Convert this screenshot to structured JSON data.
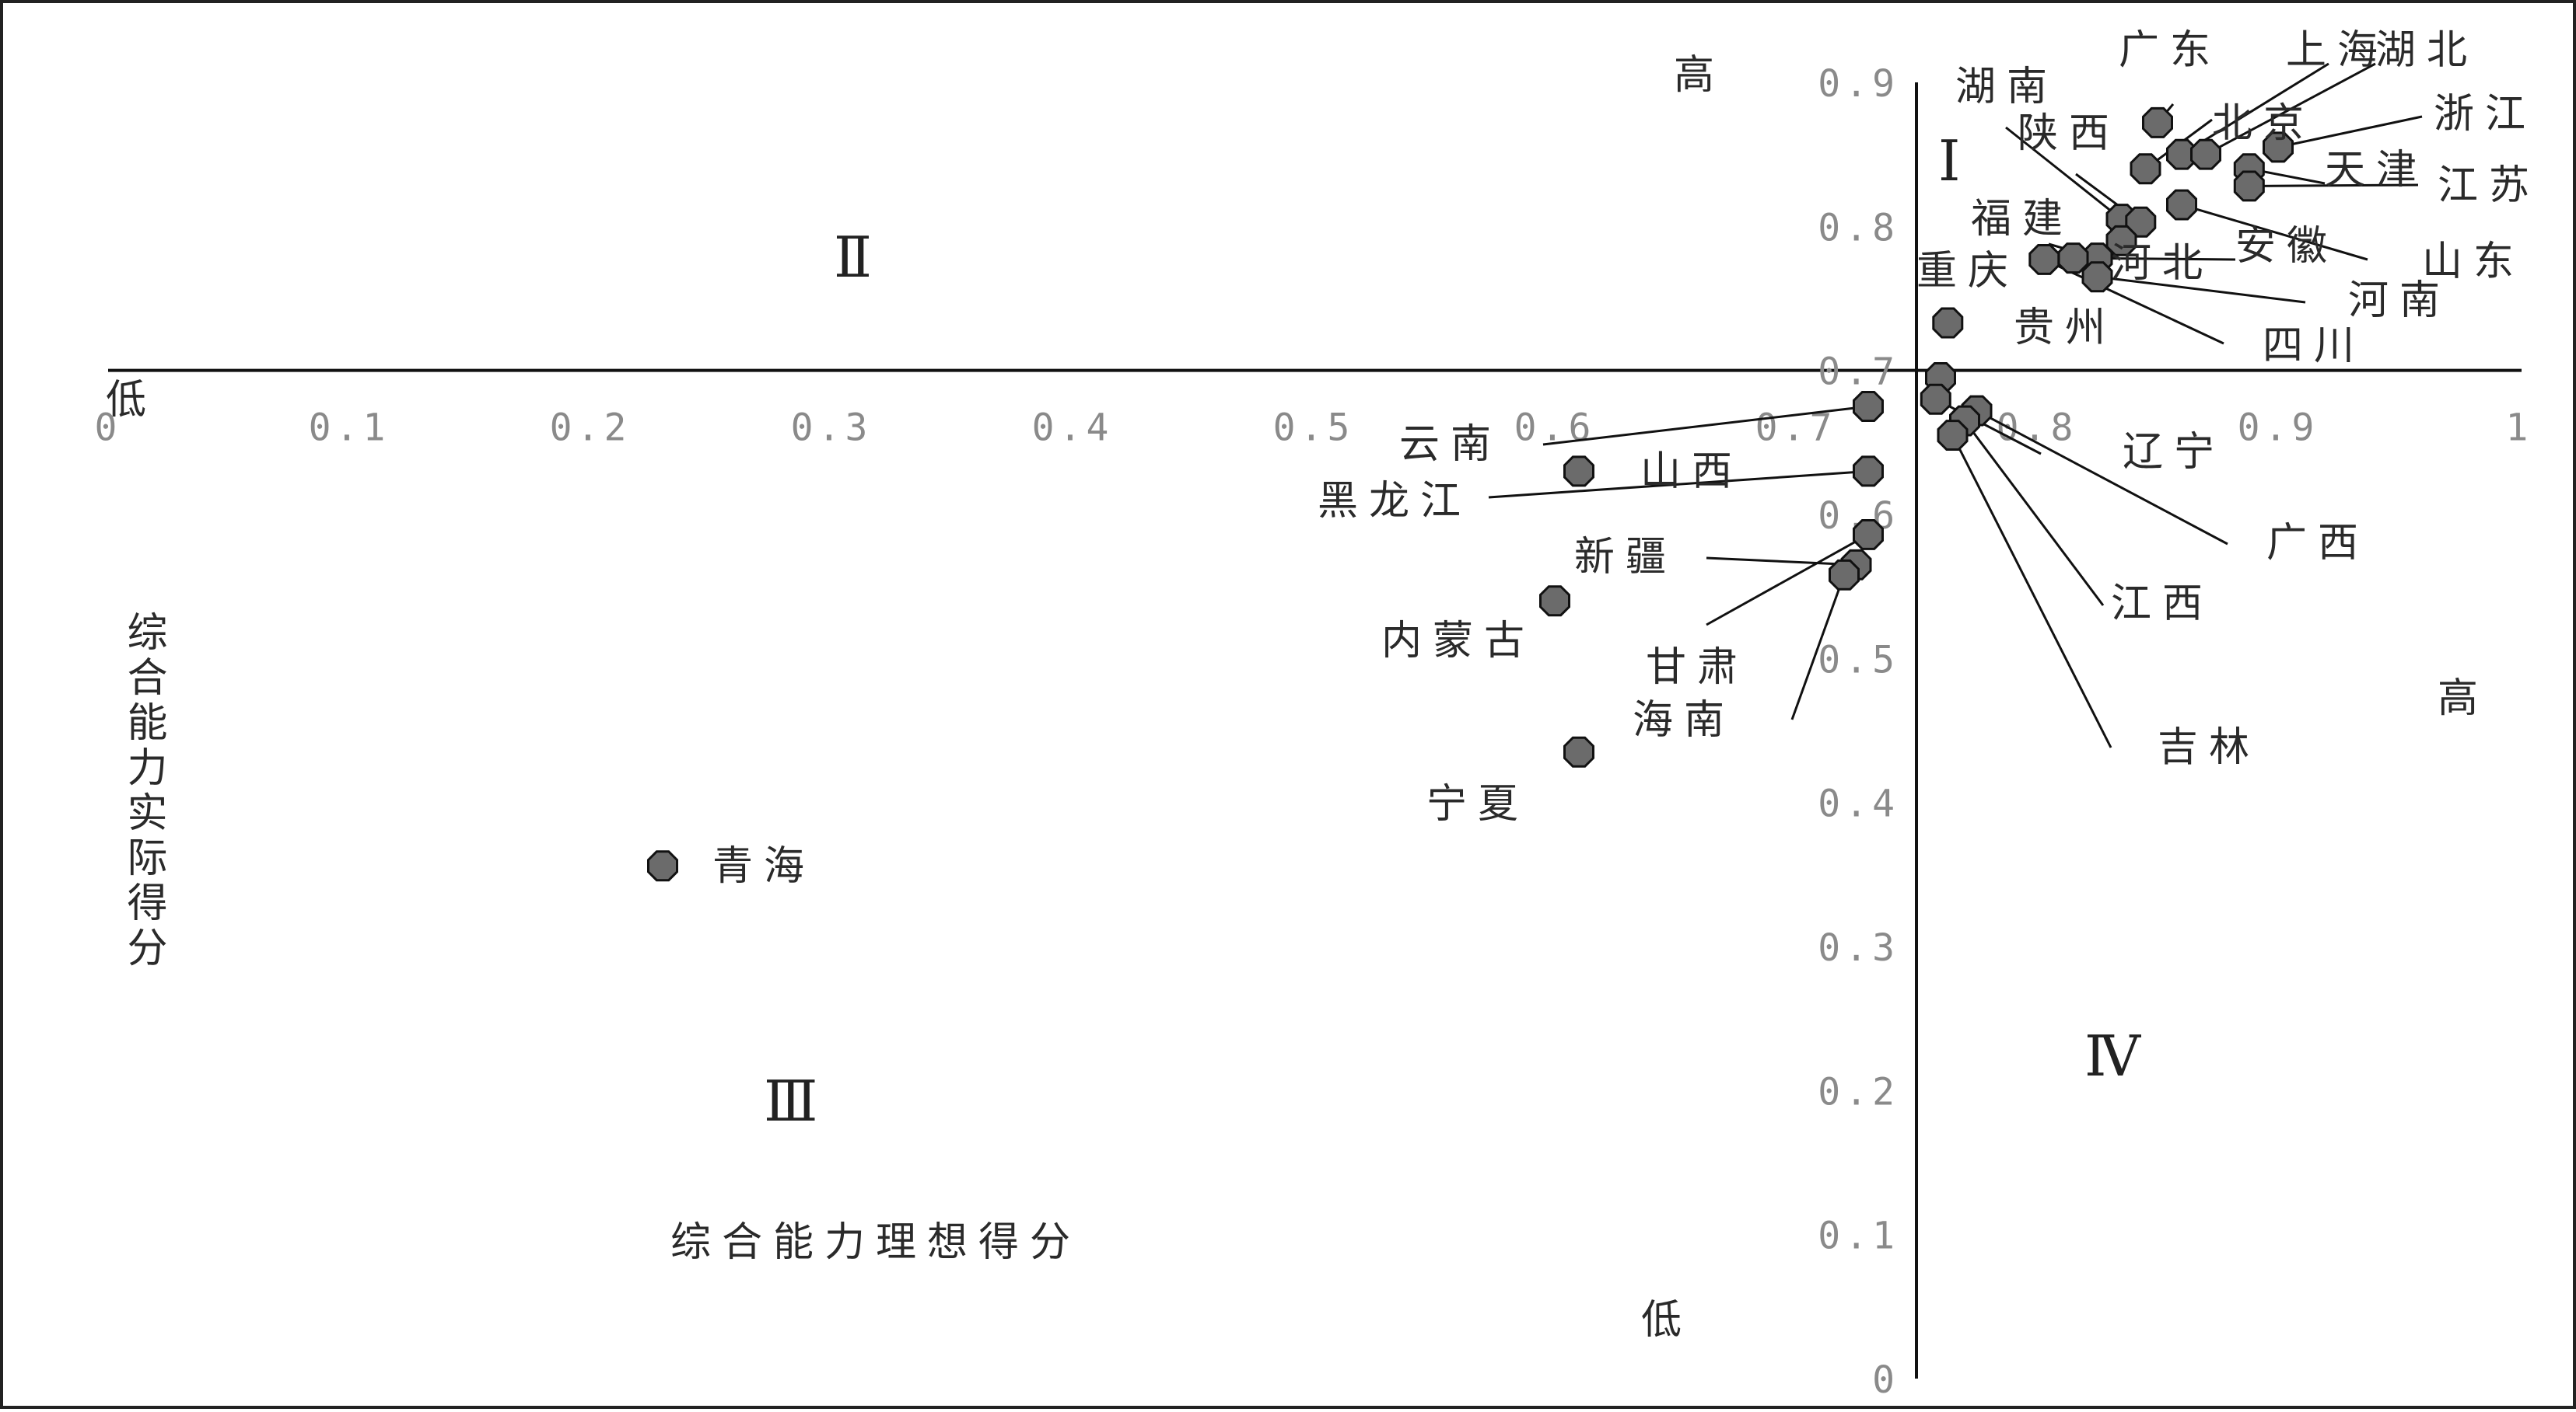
{
  "chart_data": {
    "type": "scatter",
    "title": "",
    "xlabel": "综合能力理想得分",
    "ylabel": "综合能力实际得分",
    "xlim": [
      0,
      1
    ],
    "ylim": [
      0,
      0.9
    ],
    "x_ticks": [
      "0",
      "0.1",
      "0.2",
      "0.3",
      "0.4",
      "0.5",
      "0.6",
      "0.7",
      "0.8",
      "0.9",
      "1"
    ],
    "y_ticks": [
      "0",
      "0.1",
      "0.2",
      "0.3",
      "0.4",
      "0.5",
      "0.6",
      "0.7",
      "0.8",
      "0.9"
    ],
    "axis_cross": {
      "x": 0.75,
      "y": 0.7
    },
    "corner_labels": {
      "y_high": "高",
      "y_low": "低",
      "x_low": "低",
      "x_high": "高"
    },
    "quadrants": [
      "Ⅰ",
      "Ⅱ",
      "Ⅲ",
      "Ⅳ"
    ],
    "marker_color": "#6b6b6b",
    "points": [
      {
        "name": "广东",
        "x": 0.85,
        "y": 0.872
      },
      {
        "name": "上海",
        "x": 0.86,
        "y": 0.85
      },
      {
        "name": "湖北",
        "x": 0.87,
        "y": 0.85
      },
      {
        "name": "北京",
        "x": 0.845,
        "y": 0.84
      },
      {
        "name": "浙江",
        "x": 0.9,
        "y": 0.855
      },
      {
        "name": "天津",
        "x": 0.888,
        "y": 0.84
      },
      {
        "name": "江苏",
        "x": 0.888,
        "y": 0.828
      },
      {
        "name": "山东",
        "x": 0.86,
        "y": 0.815
      },
      {
        "name": "湖南",
        "x": 0.835,
        "y": 0.805
      },
      {
        "name": "陕西",
        "x": 0.843,
        "y": 0.803
      },
      {
        "name": "福建",
        "x": 0.825,
        "y": 0.778
      },
      {
        "name": "河北",
        "x": 0.835,
        "y": 0.79
      },
      {
        "name": "安徽",
        "x": 0.815,
        "y": 0.778
      },
      {
        "name": "河南",
        "x": 0.825,
        "y": 0.765
      },
      {
        "name": "四川",
        "x": 0.803,
        "y": 0.777
      },
      {
        "name": "重庆",
        "x": 0.763,
        "y": 0.733
      },
      {
        "name": "贵州",
        "x": 0.76,
        "y": 0.695
      },
      {
        "name": "辽宁",
        "x": 0.758,
        "y": 0.68
      },
      {
        "name": "广西",
        "x": 0.775,
        "y": 0.672
      },
      {
        "name": "江西",
        "x": 0.77,
        "y": 0.665
      },
      {
        "name": "吉林",
        "x": 0.765,
        "y": 0.655
      },
      {
        "name": "云南",
        "x": 0.73,
        "y": 0.675
      },
      {
        "name": "山西",
        "x": 0.61,
        "y": 0.63
      },
      {
        "name": "黑龙江",
        "x": 0.73,
        "y": 0.63
      },
      {
        "name": "新疆",
        "x": 0.725,
        "y": 0.565
      },
      {
        "name": "甘肃",
        "x": 0.73,
        "y": 0.586
      },
      {
        "name": "海南",
        "x": 0.72,
        "y": 0.558
      },
      {
        "name": "内蒙古",
        "x": 0.6,
        "y": 0.54
      },
      {
        "name": "宁夏",
        "x": 0.61,
        "y": 0.435
      },
      {
        "name": "青海",
        "x": 0.23,
        "y": 0.356
      }
    ]
  }
}
